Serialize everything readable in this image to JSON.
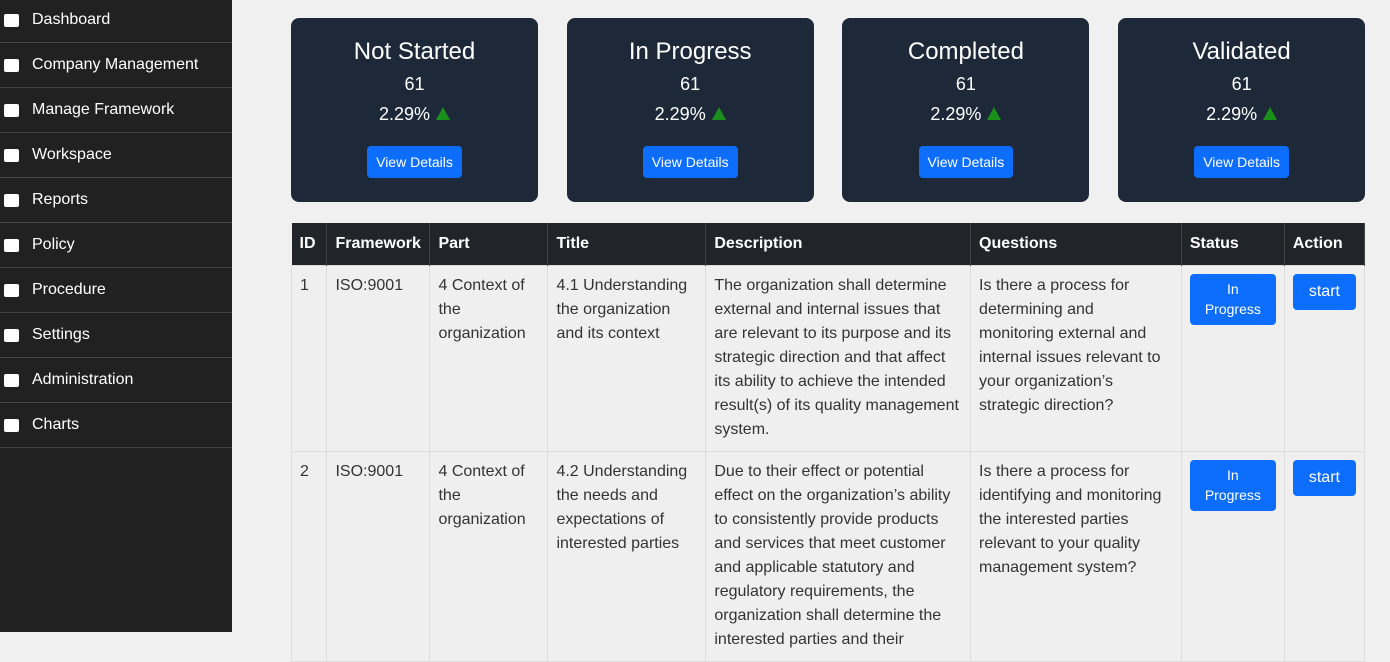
{
  "sidebar": {
    "items": [
      {
        "label": "Dashboard"
      },
      {
        "label": "Company Management"
      },
      {
        "label": "Manage Framework"
      },
      {
        "label": "Workspace"
      },
      {
        "label": "Reports"
      },
      {
        "label": "Policy"
      },
      {
        "label": "Procedure"
      },
      {
        "label": "Settings"
      },
      {
        "label": "Administration"
      },
      {
        "label": "Charts"
      }
    ]
  },
  "cards": [
    {
      "title": "Not Started",
      "count": "61",
      "percent": "2.29%",
      "button": "View Details"
    },
    {
      "title": "In Progress",
      "count": "61",
      "percent": "2.29%",
      "button": "View Details"
    },
    {
      "title": "Completed",
      "count": "61",
      "percent": "2.29%",
      "button": "View Details"
    },
    {
      "title": "Validated",
      "count": "61",
      "percent": "2.29%",
      "button": "View Details"
    }
  ],
  "table": {
    "headers": [
      "ID",
      "Framework",
      "Part",
      "Title",
      "Description",
      "Questions",
      "Status",
      "Action"
    ],
    "rows": [
      [
        "1",
        "ISO:9001",
        "4 Context of the organization",
        "4.1 Understanding the organization and its context",
        "The organization shall determine external and internal issues that are relevant to its purpose and its strategic direction and that affect its ability to achieve the intended result(s) of its quality management system.",
        "Is there a process for determining and monitoring external and internal issues relevant to your organization’s strategic direction?",
        "In Progress",
        "start"
      ],
      [
        "2",
        "ISO:9001",
        "4 Context of the organization",
        "4.2 Understanding the needs and expectations of interested parties",
        "Due to their effect or potential effect on the organization’s ability to consistently provide products and services that meet customer and applicable statutory and regulatory requirements, the organization shall determine the interested parties and their",
        "Is there a process for identifying and monitoring the interested parties relevant to your quality management system?",
        "In Progress",
        "start"
      ]
    ]
  }
}
